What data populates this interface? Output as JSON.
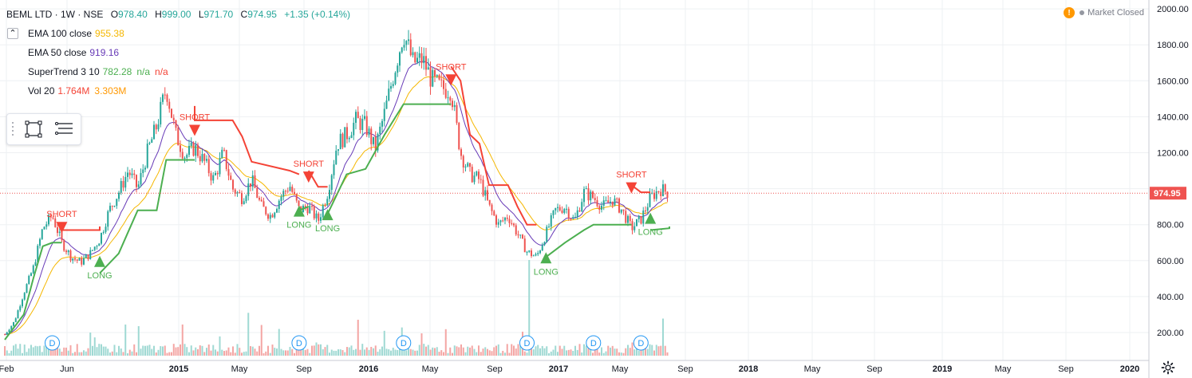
{
  "legend": {
    "symbol": "BEML LTD · 1W · NSE",
    "o_label": "O",
    "o_value": "978.40",
    "h_label": "H",
    "h_value": "999.00",
    "l_label": "L",
    "l_value": "971.70",
    "c_label": "C",
    "c_value": "974.95",
    "change": "+1.35 (+0.14%)",
    "collapse_symbol": "⌃",
    "indicators": [
      {
        "name": "EMA 100 close",
        "values": [
          "955.38"
        ],
        "colors": [
          "#f5b700"
        ]
      },
      {
        "name": "EMA 50 close",
        "values": [
          "919.16"
        ],
        "colors": [
          "#673ab7"
        ]
      },
      {
        "name": "SuperTrend 3 10",
        "values": [
          "782.28",
          "n/a",
          "n/a"
        ],
        "colors": [
          "#4caf50",
          "#4caf50",
          "#f44336"
        ]
      },
      {
        "name": "Vol 20",
        "values": [
          "1.764M",
          "3.303M"
        ],
        "colors": [
          "#f44336",
          "#ff9800"
        ]
      }
    ]
  },
  "status": {
    "warning_glyph": "!",
    "market_status": "Market Closed"
  },
  "icons": {
    "warning": "warning-icon",
    "rectangle_tool": "rectangle-icon",
    "list_tool": "list-icon",
    "settings": "gear-icon",
    "grip": "drag-grip-icon"
  },
  "colors": {
    "up": "#26a69a",
    "down": "#ef5350",
    "ema100": "#f5b700",
    "ema50": "#673ab7",
    "st_up": "#4caf50",
    "st_down": "#f44336",
    "vol_up": "#9fd9d3",
    "vol_down": "#f4a6a4",
    "price_line": "#ef5350",
    "grid": "#eef0f3",
    "axis_text": "#131722",
    "dividend": "#2196f3"
  },
  "chart_data": {
    "type": "candlestick",
    "symbol": "BEML LTD",
    "interval": "1W",
    "exchange": "NSE",
    "last_price": "974.95",
    "y_ticks": [
      200,
      400,
      600,
      800,
      1000,
      1200,
      1400,
      1600,
      1800,
      2000
    ],
    "y_tick_labels": [
      "200.00",
      "400.00",
      "600.00",
      "800.00",
      "",
      "1200.00",
      "1400.00",
      "1600.00",
      "1800.00",
      "2000.00"
    ],
    "ylim": [
      80,
      2010
    ],
    "x_labels": [
      "Feb",
      "Jun",
      "2015",
      "May",
      "Sep",
      "2016",
      "May",
      "Sep",
      "2017",
      "May",
      "Sep",
      "2018",
      "May",
      "Sep",
      "2019",
      "May",
      "Sep",
      "2020"
    ],
    "grid": true,
    "candles_anchor": [
      [
        "2014-02",
        190
      ],
      [
        "2014-03",
        260
      ],
      [
        "2014-04",
        420
      ],
      [
        "2014-05",
        560
      ],
      [
        "2014-06",
        780
      ],
      [
        "2014-07",
        850
      ],
      [
        "2014-08",
        700
      ],
      [
        "2014-09",
        620
      ],
      [
        "2014-10",
        590
      ],
      [
        "2014-11",
        640
      ],
      [
        "2014-12",
        720
      ],
      [
        "2015-01",
        880
      ],
      [
        "2015-02",
        980
      ],
      [
        "2015-03",
        1100
      ],
      [
        "2015-04",
        1000
      ],
      [
        "2015-05",
        1200
      ],
      [
        "2015-06",
        1350
      ],
      [
        "2015-07",
        1560
      ],
      [
        "2015-08",
        1300
      ],
      [
        "2015-09",
        1180
      ],
      [
        "2015-10",
        1230
      ],
      [
        "2015-11",
        1150
      ],
      [
        "2015-12",
        1050
      ],
      [
        "2016-01",
        1200
      ],
      [
        "2016-02",
        1000
      ],
      [
        "2016-03",
        950
      ],
      [
        "2016-04",
        1050
      ],
      [
        "2016-05",
        900
      ],
      [
        "2016-06",
        850
      ],
      [
        "2016-07",
        950
      ],
      [
        "2016-08",
        1020
      ],
      [
        "2016-09",
        880
      ],
      [
        "2016-10",
        900
      ],
      [
        "2016-11",
        820
      ],
      [
        "2016-12",
        980
      ],
      [
        "2017-01",
        1250
      ],
      [
        "2017-02",
        1300
      ],
      [
        "2017-03",
        1380
      ],
      [
        "2017-04",
        1350
      ],
      [
        "2017-05",
        1220
      ],
      [
        "2017-06",
        1420
      ],
      [
        "2017-07",
        1650
      ],
      [
        "2017-08",
        1870
      ],
      [
        "2017-09",
        1700
      ],
      [
        "2017-10",
        1720
      ],
      [
        "2017-11",
        1600
      ],
      [
        "2017-12",
        1560
      ],
      [
        "2018-01",
        1550
      ],
      [
        "2018-02",
        1200
      ],
      [
        "2018-03",
        1080
      ],
      [
        "2018-04",
        1050
      ],
      [
        "2018-05",
        900
      ],
      [
        "2018-06",
        800
      ],
      [
        "2018-07",
        850
      ],
      [
        "2018-08",
        750
      ],
      [
        "2018-09",
        650
      ],
      [
        "2018-10",
        620
      ],
      [
        "2018-11",
        750
      ],
      [
        "2018-12",
        880
      ],
      [
        "2019-01",
        900
      ],
      [
        "2019-02",
        820
      ],
      [
        "2019-03",
        980
      ],
      [
        "2019-04",
        950
      ],
      [
        "2019-05",
        900
      ],
      [
        "2019-06",
        940
      ],
      [
        "2019-07",
        880
      ],
      [
        "2019-08",
        780
      ],
      [
        "2019-09",
        830
      ],
      [
        "2019-10",
        950
      ],
      [
        "2019-11",
        1000
      ],
      [
        "2019-12",
        975
      ]
    ],
    "supertrend_segments": [
      {
        "trend": "up",
        "points": [
          [
            "2014-02",
            160
          ],
          [
            "2014-04",
            300
          ],
          [
            "2014-05",
            500
          ],
          [
            "2014-06",
            680
          ],
          [
            "2014-07",
            700
          ],
          [
            "2014-08",
            700
          ]
        ]
      },
      {
        "trend": "down",
        "points": [
          [
            "2014-08",
            770
          ],
          [
            "2014-12",
            770
          ],
          [
            "2014-12",
            790
          ]
        ]
      },
      {
        "trend": "up",
        "points": [
          [
            "2014-12",
            530
          ],
          [
            "2015-02",
            640
          ],
          [
            "2015-03",
            760
          ],
          [
            "2015-04",
            880
          ],
          [
            "2015-06",
            880
          ],
          [
            "2015-07",
            1160
          ],
          [
            "2015-10",
            1160
          ]
        ]
      },
      {
        "trend": "down",
        "points": [
          [
            "2015-10",
            1460
          ],
          [
            "2015-10",
            1380
          ],
          [
            "2016-02",
            1380
          ],
          [
            "2016-03",
            1290
          ],
          [
            "2016-04",
            1150
          ],
          [
            "2016-08",
            1100
          ],
          [
            "2016-09",
            1080
          ]
        ]
      },
      {
        "trend": "up",
        "points": [
          [
            "2016-09",
            880
          ],
          [
            "2016-10",
            900
          ]
        ]
      },
      {
        "trend": "down",
        "points": [
          [
            "2016-10",
            1100
          ],
          [
            "2016-11",
            1010
          ],
          [
            "2016-12",
            1010
          ]
        ]
      },
      {
        "trend": "up",
        "points": [
          [
            "2016-12",
            860
          ],
          [
            "2017-02",
            1080
          ],
          [
            "2017-04",
            1110
          ],
          [
            "2017-06",
            1300
          ],
          [
            "2017-08",
            1470
          ],
          [
            "2018-01",
            1470
          ]
        ]
      },
      {
        "trend": "down",
        "points": [
          [
            "2018-01",
            1680
          ],
          [
            "2018-02",
            1600
          ],
          [
            "2018-03",
            1300
          ],
          [
            "2018-04",
            1250
          ],
          [
            "2018-05",
            1020
          ],
          [
            "2018-07",
            1020
          ],
          [
            "2018-08",
            900
          ],
          [
            "2018-09",
            800
          ],
          [
            "2018-10",
            800
          ]
        ]
      },
      {
        "trend": "up",
        "points": [
          [
            "2018-11",
            620
          ],
          [
            "2019-01",
            700
          ],
          [
            "2019-03",
            770
          ],
          [
            "2019-04",
            800
          ],
          [
            "2019-08",
            800
          ]
        ]
      },
      {
        "trend": "down",
        "points": [
          [
            "2019-08",
            1020
          ],
          [
            "2019-09",
            980
          ],
          [
            "2019-10",
            980
          ]
        ]
      },
      {
        "trend": "up",
        "points": [
          [
            "2019-10",
            770
          ],
          [
            "2019-12",
            780
          ],
          [
            "2019-12",
            790
          ]
        ]
      }
    ],
    "signals": [
      {
        "type": "SHORT",
        "date": "2014-08",
        "price": 780
      },
      {
        "type": "LONG",
        "date": "2014-12",
        "price": 600
      },
      {
        "type": "SHORT",
        "date": "2015-10",
        "price": 1320
      },
      {
        "type": "LONG",
        "date": "2016-09",
        "price": 880
      },
      {
        "type": "SHORT",
        "date": "2016-10",
        "price": 1060
      },
      {
        "type": "LONG",
        "date": "2016-12",
        "price": 860
      },
      {
        "type": "SHORT",
        "date": "2018-01",
        "price": 1600
      },
      {
        "type": "LONG",
        "date": "2018-11",
        "price": 620
      },
      {
        "type": "SHORT",
        "date": "2019-08",
        "price": 1000
      },
      {
        "type": "LONG",
        "date": "2019-10",
        "price": 840
      }
    ],
    "dividend_markers": [
      "2014-07",
      "2016-09",
      "2017-08",
      "2018-09",
      "2019-04",
      "2019-09"
    ],
    "dividend_label": "D"
  }
}
